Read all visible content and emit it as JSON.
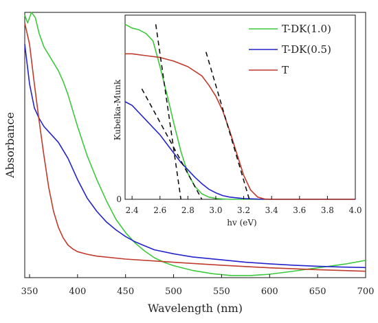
{
  "chart_data": [
    {
      "id": "main",
      "type": "line",
      "title": "",
      "xlabel": "Wavelength (nm)",
      "ylabel": "Absorbance",
      "xlim": [
        345,
        700
      ],
      "ylim": [
        0,
        1
      ],
      "xticks": [
        350,
        400,
        450,
        500,
        550,
        600,
        650,
        700
      ],
      "yticks_shown": false,
      "legend": "top-right",
      "series": [
        {
          "name": "T-DK(1.0)",
          "color": "#3cc83c",
          "x": [
            345,
            348,
            352,
            356,
            360,
            365,
            370,
            375,
            380,
            385,
            390,
            400,
            410,
            420,
            430,
            440,
            450,
            460,
            470,
            480,
            490,
            500,
            520,
            540,
            560,
            580,
            600,
            620,
            640,
            660,
            680,
            700
          ],
          "y": [
            0.99,
            0.96,
            1.0,
            0.98,
            0.92,
            0.87,
            0.84,
            0.81,
            0.78,
            0.74,
            0.69,
            0.57,
            0.46,
            0.37,
            0.29,
            0.22,
            0.17,
            0.13,
            0.1,
            0.075,
            0.058,
            0.045,
            0.027,
            0.015,
            0.008,
            0.008,
            0.013,
            0.022,
            0.032,
            0.042,
            0.052,
            0.065
          ]
        },
        {
          "name": "T-DK(0.5)",
          "color": "#2222cc",
          "x": [
            345,
            350,
            355,
            360,
            365,
            370,
            380,
            390,
            400,
            410,
            420,
            430,
            440,
            450,
            460,
            470,
            480,
            500,
            520,
            550,
            575,
            600,
            625,
            650,
            675,
            700
          ],
          "y": [
            0.88,
            0.73,
            0.64,
            0.6,
            0.57,
            0.55,
            0.51,
            0.45,
            0.37,
            0.3,
            0.25,
            0.21,
            0.18,
            0.155,
            0.135,
            0.12,
            0.105,
            0.09,
            0.078,
            0.067,
            0.058,
            0.052,
            0.047,
            0.043,
            0.04,
            0.038
          ]
        },
        {
          "name": "T",
          "color": "#c0392b",
          "x": [
            345,
            350,
            355,
            360,
            365,
            370,
            375,
            380,
            385,
            390,
            395,
            400,
            410,
            420,
            450,
            500,
            550,
            600,
            650,
            700
          ],
          "y": [
            0.96,
            0.88,
            0.73,
            0.59,
            0.46,
            0.34,
            0.25,
            0.19,
            0.15,
            0.123,
            0.108,
            0.098,
            0.088,
            0.081,
            0.07,
            0.058,
            0.047,
            0.037,
            0.03,
            0.024
          ]
        }
      ]
    },
    {
      "id": "inset",
      "type": "line",
      "title": "",
      "xlabel": "hv (eV)",
      "ylabel": "Kubelka-Munk",
      "xlim": [
        2.35,
        4.0
      ],
      "ylim": [
        0,
        1
      ],
      "xticks": [
        2.4,
        2.6,
        2.8,
        3.0,
        3.2,
        3.4,
        3.6,
        3.8,
        4.0
      ],
      "xtick_labels": [
        "2.4",
        "2.6",
        "2.8",
        "3.0",
        "3.2",
        "3.4",
        "3.6",
        "3.8",
        "4.0"
      ],
      "ytick_labels": [
        "0"
      ],
      "series": [
        {
          "name": "T-DK(1.0)",
          "color": "#3cc83c",
          "x": [
            2.35,
            2.4,
            2.45,
            2.5,
            2.55,
            2.6,
            2.65,
            2.7,
            2.75,
            2.8,
            2.85,
            2.9,
            2.95,
            3.0,
            3.05,
            3.1,
            3.2,
            3.4,
            4.0
          ],
          "y": [
            0.95,
            0.93,
            0.92,
            0.9,
            0.86,
            0.72,
            0.57,
            0.41,
            0.26,
            0.14,
            0.07,
            0.03,
            0.012,
            0.005,
            0.002,
            0.0,
            0.0,
            0.0,
            0.0
          ]
        },
        {
          "name": "T-DK(0.5)",
          "color": "#2222cc",
          "x": [
            2.35,
            2.4,
            2.45,
            2.5,
            2.55,
            2.6,
            2.65,
            2.7,
            2.75,
            2.8,
            2.85,
            2.9,
            2.95,
            3.0,
            3.05,
            3.1,
            3.2,
            3.3,
            3.4,
            4.0
          ],
          "y": [
            0.53,
            0.51,
            0.47,
            0.43,
            0.39,
            0.35,
            0.3,
            0.25,
            0.2,
            0.16,
            0.12,
            0.085,
            0.055,
            0.035,
            0.02,
            0.012,
            0.004,
            0.001,
            0.0,
            0.0
          ]
        },
        {
          "name": "T",
          "color": "#c0392b",
          "x": [
            2.35,
            2.4,
            2.5,
            2.6,
            2.7,
            2.8,
            2.9,
            2.95,
            3.0,
            3.05,
            3.1,
            3.15,
            3.2,
            3.25,
            3.3,
            3.35,
            3.4,
            3.5,
            4.0
          ],
          "y": [
            0.79,
            0.79,
            0.78,
            0.77,
            0.75,
            0.72,
            0.67,
            0.62,
            0.56,
            0.48,
            0.37,
            0.25,
            0.13,
            0.05,
            0.012,
            0.002,
            0.0,
            0.0,
            0.0
          ]
        }
      ],
      "tangents": [
        {
          "for": "T-DK(1.0)",
          "x": [
            2.57,
            2.75
          ],
          "y": [
            0.95,
            0.0
          ]
        },
        {
          "for": "T-DK(0.5)",
          "x": [
            2.47,
            2.9
          ],
          "y": [
            0.6,
            0.0
          ]
        },
        {
          "for": "T",
          "x": [
            2.93,
            3.24
          ],
          "y": [
            0.8,
            0.0
          ]
        }
      ]
    }
  ]
}
